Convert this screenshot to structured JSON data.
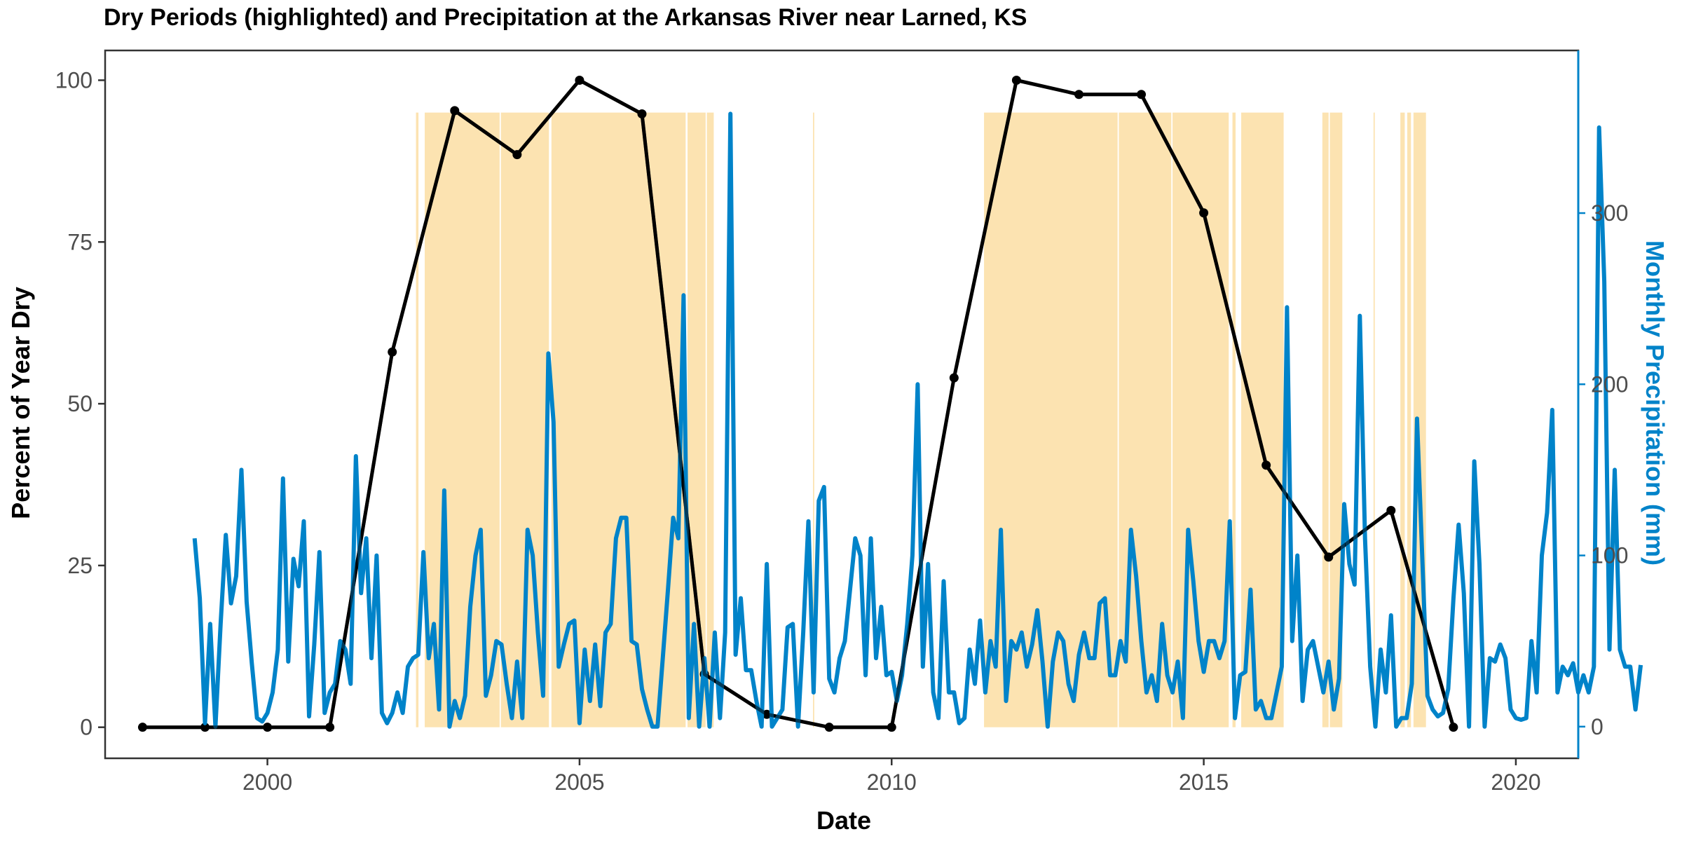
{
  "chart_data": {
    "type": "line",
    "title": "Dry Periods (highlighted) and Precipitation at the Arkansas River near Larned, KS",
    "xlabel": "Date",
    "ylabel": "Percent of Year Dry",
    "y2label": "Monthly Precipitation (mm)",
    "xlim": [
      1997.4,
      2021.0
    ],
    "ylim": [
      -4.8,
      104.6
    ],
    "y2lim": [
      -18.5,
      395
    ],
    "x_ticks": [
      2000,
      2005,
      2010,
      2015,
      2020
    ],
    "y_ticks": [
      0,
      25,
      50,
      75,
      100
    ],
    "y2_ticks": [
      0,
      100,
      200,
      300
    ],
    "grid": false,
    "legend": "none",
    "colors": {
      "dry_line": "#000000",
      "precip": "#0083C9",
      "dry_fill": "#FCE3B1",
      "y2_axis": "#0083C9"
    },
    "dry_fraction": {
      "x": [
        1998,
        1999,
        2000,
        2001,
        2002,
        2003,
        2004,
        2005,
        2006,
        2007,
        2008,
        2009,
        2010,
        2011,
        2012,
        2013,
        2014,
        2015,
        2016,
        2017,
        2018,
        2019
      ],
      "y": [
        0,
        0,
        0,
        0,
        58,
        95.3,
        88.5,
        100,
        94.8,
        8.2,
        2,
        0,
        0,
        54,
        100,
        97.8,
        97.8,
        79.5,
        40.5,
        26.3,
        33.5,
        0
      ]
    },
    "dry_periods": [
      [
        2002.38,
        2002.42
      ],
      [
        2002.52,
        2003.72
      ],
      [
        2003.74,
        2004.51
      ],
      [
        2004.55,
        2006.7
      ],
      [
        2006.73,
        2007.02
      ],
      [
        2007.04,
        2007.15
      ],
      [
        2008.74,
        2008.76
      ],
      [
        2011.48,
        2013.62
      ],
      [
        2013.64,
        2014.48
      ],
      [
        2014.5,
        2015.4
      ],
      [
        2015.46,
        2015.51
      ],
      [
        2015.6,
        2016.28
      ],
      [
        2016.9,
        2017.0
      ],
      [
        2017.02,
        2017.22
      ],
      [
        2017.72,
        2017.74
      ],
      [
        2018.15,
        2018.22
      ],
      [
        2018.26,
        2018.32
      ],
      [
        2018.36,
        2018.56
      ]
    ],
    "precip": {
      "start": "1998-11",
      "values": [
        110,
        75,
        2,
        60,
        0,
        60,
        112,
        72,
        88,
        150,
        73,
        37,
        5,
        3,
        8,
        20,
        45,
        145,
        38,
        98,
        82,
        120,
        6,
        48,
        102,
        8,
        20,
        25,
        50,
        45,
        25,
        158,
        78,
        110,
        40,
        100,
        8,
        2,
        8,
        20,
        8,
        35,
        40,
        42,
        102,
        40,
        60,
        10,
        138,
        0,
        15,
        5,
        18,
        70,
        100,
        115,
        18,
        30,
        50,
        48,
        25,
        5,
        38,
        5,
        115,
        100,
        55,
        18,
        218,
        178,
        35,
        48,
        60,
        62,
        2,
        45,
        15,
        48,
        12,
        55,
        60,
        110,
        122,
        122,
        50,
        48,
        22,
        10,
        0,
        0,
        40,
        80,
        122,
        110,
        252,
        5,
        60,
        0,
        40,
        0,
        55,
        5,
        55,
        358,
        42,
        75,
        33,
        33,
        15,
        0,
        95,
        0,
        5,
        10,
        58,
        60,
        0,
        55,
        120,
        20,
        132,
        140,
        28,
        20,
        40,
        50,
        80,
        110,
        100,
        30,
        110,
        40,
        70,
        30,
        32,
        15,
        30,
        60,
        100,
        200,
        35,
        95,
        20,
        5,
        85,
        20,
        20,
        2,
        5,
        45,
        25,
        62,
        20,
        50,
        35,
        115,
        15,
        50,
        45,
        55,
        35,
        48,
        68,
        38,
        0,
        38,
        55,
        50,
        25,
        15,
        42,
        55,
        40,
        40,
        72,
        75,
        30,
        30,
        50,
        38,
        115,
        88,
        50,
        20,
        30,
        15,
        60,
        30,
        20,
        38,
        5,
        115,
        85,
        50,
        32,
        50,
        50,
        40,
        50,
        120,
        5,
        30,
        32,
        80,
        10,
        15,
        5,
        5,
        20,
        35,
        245,
        50,
        100,
        15,
        45,
        50,
        35,
        20,
        38,
        10,
        28,
        130,
        95,
        83,
        240,
        110,
        35,
        0,
        45,
        20,
        65,
        0,
        5,
        5,
        25,
        180,
        100,
        18,
        10,
        6,
        8,
        22,
        75,
        118,
        78,
        0,
        155,
        95,
        0,
        40,
        38,
        48,
        40,
        10,
        5,
        4,
        5,
        50,
        20,
        100,
        125,
        185,
        20,
        35,
        30,
        37,
        20,
        30,
        20,
        35,
        350,
        260,
        45,
        150,
        45,
        35,
        35,
        10,
        36
      ]
    }
  }
}
